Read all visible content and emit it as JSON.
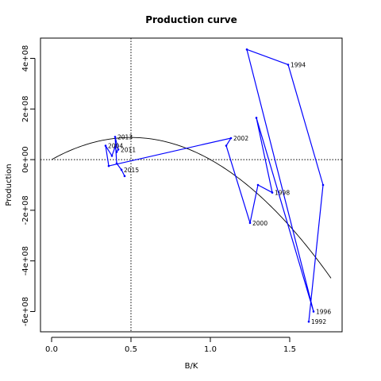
{
  "chart_data": {
    "type": "line",
    "title": "Production curve",
    "xlabel": "B/K",
    "ylabel": "Production",
    "xlim": [
      -0.07,
      1.83
    ],
    "ylim": [
      -680000000,
      480000000
    ],
    "x_ticks": [
      {
        "v": 0,
        "label": "0.0"
      },
      {
        "v": 0.5,
        "label": "0.5"
      },
      {
        "v": 1.0,
        "label": "1.0"
      },
      {
        "v": 1.5,
        "label": "1.5"
      }
    ],
    "y_ticks": [
      {
        "v": 400000000,
        "label": "4e+08"
      },
      {
        "v": 200000000,
        "label": "2e+08"
      },
      {
        "v": 0,
        "label": "0e+00"
      },
      {
        "v": -200000000,
        "label": "-2e+08"
      },
      {
        "v": -400000000,
        "label": "-4e+08"
      },
      {
        "v": -600000000,
        "label": "-6e+08"
      }
    ],
    "reference_lines": {
      "vertical_x": 0.5,
      "horizontal_y": 0
    },
    "curve": {
      "r": 0.7,
      "K": 1,
      "scale": 500000000,
      "x_min": 0,
      "x_max": 1.76
    },
    "series": [
      {
        "color": "#0000ff",
        "points": [
          {
            "x": 1.62,
            "y": -640000000,
            "label": "1992"
          },
          {
            "x": 1.71,
            "y": -100000000,
            "label": ""
          },
          {
            "x": 1.49,
            "y": 375000000,
            "label": "1994"
          },
          {
            "x": 1.23,
            "y": 435000000,
            "label": ""
          },
          {
            "x": 1.65,
            "y": -600000000,
            "label": "1996"
          },
          {
            "x": 1.29,
            "y": 165000000,
            "label": ""
          },
          {
            "x": 1.39,
            "y": -130000000,
            "label": "1998"
          },
          {
            "x": 1.3,
            "y": -100000000,
            "label": ""
          },
          {
            "x": 1.25,
            "y": -250000000,
            "label": "2000"
          },
          {
            "x": 1.1,
            "y": 55000000,
            "label": ""
          },
          {
            "x": 1.13,
            "y": 85000000,
            "label": "2002"
          },
          {
            "x": 0.36,
            "y": -25000000,
            "label": ""
          },
          {
            "x": 0.34,
            "y": 55000000,
            "label": "2004"
          },
          {
            "x": 0.38,
            "y": 15000000,
            "label": ""
          },
          {
            "x": 0.4,
            "y": 50000000,
            "label": ""
          },
          {
            "x": 0.41,
            "y": 30000000,
            "label": ""
          },
          {
            "x": 0.42,
            "y": 40000000,
            "label": "2011"
          },
          {
            "x": 0.4,
            "y": 90000000,
            "label": "2013"
          },
          {
            "x": 0.41,
            "y": -15000000,
            "label": ""
          },
          {
            "x": 0.44,
            "y": -40000000,
            "label": "2015"
          },
          {
            "x": 0.46,
            "y": -65000000,
            "label": ""
          }
        ]
      }
    ]
  }
}
